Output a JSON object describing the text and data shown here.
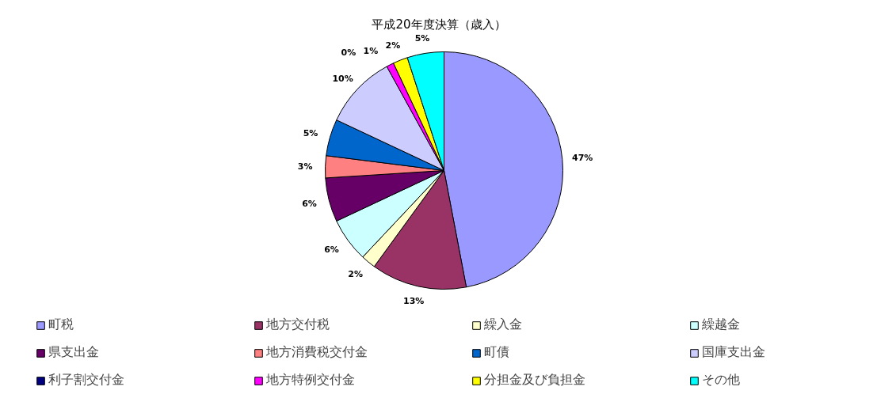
{
  "chart_data": {
    "type": "pie",
    "title": "平成20年度決算（歳入）",
    "categories": [
      "町税",
      "地方交付税",
      "繰入金",
      "繰越金",
      "県支出金",
      "地方消費税交付金",
      "町債",
      "国庫支出金",
      "利子割交付金",
      "地方特例交付金",
      "分担金及び負担金",
      "その他"
    ],
    "values": [
      47,
      13,
      2,
      6,
      6,
      3,
      5,
      10,
      0,
      1,
      2,
      5
    ],
    "colors": [
      "#9999ff",
      "#993366",
      "#ffffcc",
      "#ccffff",
      "#660066",
      "#ff8080",
      "#0066cc",
      "#ccccff",
      "#000080",
      "#ff00ff",
      "#ffff00",
      "#00ffff"
    ],
    "value_labels": [
      "47%",
      "13%",
      "2%",
      "6%",
      "6%",
      "3%",
      "5%",
      "10%",
      "0%",
      "1%",
      "2%",
      "5%"
    ],
    "legend": "bottom"
  }
}
